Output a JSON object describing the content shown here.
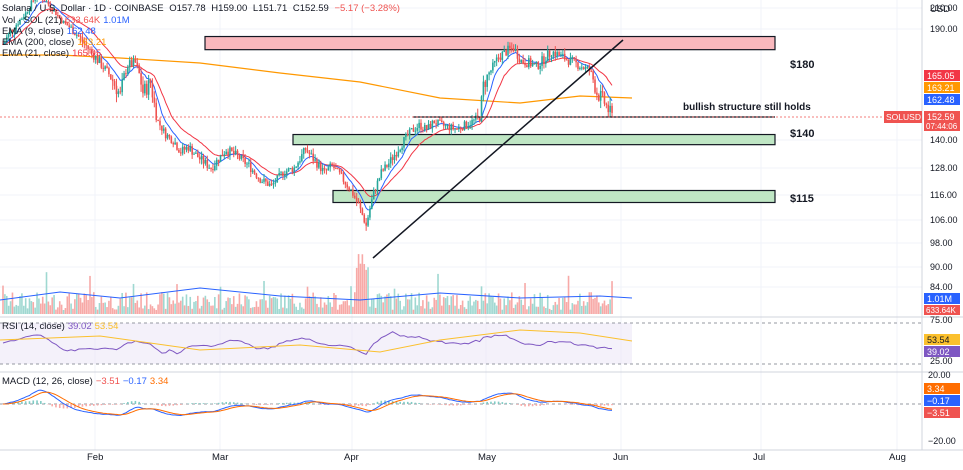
{
  "header": {
    "symbol_line": "Solana / U.S. Dollar · 1D · COINBASE",
    "ohlc": {
      "O": "157.78",
      "H": "159.00",
      "L": "151.71",
      "C": "152.59",
      "change": "−5.17 (−3.28%)"
    }
  },
  "legends": {
    "vol": {
      "label": "Vol · SOL (21)",
      "value": "633.64K",
      "value2": "1.01M"
    },
    "ema9": {
      "label": "EMA (9, close)",
      "value": "162.48"
    },
    "ema200": {
      "label": "EMA (200, close)",
      "value": "163.21"
    },
    "ema21": {
      "label": "EMA (21, close)",
      "value": "165.05"
    },
    "rsi": {
      "label": "RSI (14, close)",
      "value": "39.02",
      "value2": "53.54"
    },
    "macd": {
      "label": "MACD (12, 26, close)",
      "value": "−3.51",
      "value2": "−0.17",
      "value3": "3.34"
    }
  },
  "axis": {
    "currency": "USD"
  },
  "price_badges": {
    "ema21": "165.05",
    "ema200": "163.21",
    "ema9": "162.48",
    "last_symbol": "SOLUSD",
    "last_price": "152.59",
    "countdown": "07:44:06",
    "vol_ma": "1.01M",
    "vol_last": "633.64K",
    "rsi_ma": "53.54",
    "rsi_val": "39.02",
    "macd_signal": "3.34",
    "macd_line": "−0.17",
    "macd_hist": "−3.51"
  },
  "annotations": {
    "z180": "$180",
    "z140": "$140",
    "z115": "$115",
    "bullish": "bullish structure still holds"
  },
  "colors": {
    "up": "#26a69a",
    "down": "#ef5350",
    "ema9": "#2962ff",
    "ema21": "#f23645",
    "ema200": "#ff9800",
    "zone_red": "#f9b8bd",
    "zone_green": "#bfe6c4",
    "rsi_line": "#7e57c2",
    "rsi_ma": "#fbc02d",
    "macd_line": "#2962ff",
    "macd_signal": "#ff6d00"
  },
  "chart_data": {
    "type": "candlestick",
    "price_ticks": [
      "210.00",
      "190.00",
      "180.00",
      "165.05",
      "163.21",
      "162.48",
      "152.59",
      "140.00",
      "128.00",
      "116.00",
      "106.00",
      "98.00",
      "90.00",
      "84.00"
    ],
    "x_labels": [
      "Feb",
      "Mar",
      "Apr",
      "May",
      "Jun",
      "Jul",
      "Aug"
    ],
    "rsi_ticks": [
      "75.00",
      "25.00"
    ],
    "macd_ticks": [
      "20.00",
      "−20.00"
    ],
    "resistance_zone": [
      179,
      186
    ],
    "support_zones": [
      [
        138,
        143
      ],
      [
        113,
        118
      ]
    ],
    "price_path": [
      [
        0,
        182
      ],
      [
        6,
        192
      ],
      [
        12,
        205
      ],
      [
        18,
        224
      ],
      [
        22,
        218
      ],
      [
        26,
        210
      ],
      [
        32,
        196
      ],
      [
        40,
        186
      ],
      [
        48,
        176
      ],
      [
        56,
        166
      ],
      [
        62,
        159
      ],
      [
        66,
        171
      ],
      [
        70,
        172
      ],
      [
        74,
        160
      ],
      [
        78,
        163
      ],
      [
        82,
        150
      ],
      [
        86,
        143
      ],
      [
        90,
        140
      ],
      [
        94,
        135
      ],
      [
        98,
        137
      ],
      [
        104,
        132
      ],
      [
        110,
        128
      ],
      [
        114,
        132
      ],
      [
        118,
        136
      ],
      [
        124,
        133
      ],
      [
        130,
        129
      ],
      [
        136,
        123
      ],
      [
        142,
        120
      ],
      [
        148,
        126
      ],
      [
        154,
        128
      ],
      [
        160,
        136
      ],
      [
        166,
        130
      ],
      [
        170,
        126
      ],
      [
        174,
        129
      ],
      [
        178,
        125
      ],
      [
        184,
        118
      ],
      [
        188,
        112
      ],
      [
        192,
        104
      ],
      [
        196,
        117
      ],
      [
        200,
        126
      ],
      [
        204,
        130
      ],
      [
        208,
        135
      ],
      [
        212,
        140
      ],
      [
        216,
        145
      ],
      [
        220,
        148
      ],
      [
        224,
        146
      ],
      [
        228,
        150
      ],
      [
        232,
        148
      ],
      [
        236,
        147
      ],
      [
        240,
        146
      ],
      [
        244,
        148
      ],
      [
        248,
        150
      ],
      [
        252,
        152
      ],
      [
        254,
        162
      ],
      [
        258,
        168
      ],
      [
        262,
        175
      ],
      [
        266,
        178
      ],
      [
        270,
        180
      ],
      [
        274,
        173
      ],
      [
        278,
        172
      ],
      [
        282,
        170
      ],
      [
        286,
        174
      ],
      [
        290,
        178
      ],
      [
        294,
        176
      ],
      [
        298,
        174
      ],
      [
        302,
        172
      ],
      [
        306,
        170
      ],
      [
        310,
        168
      ],
      [
        314,
        160
      ],
      [
        318,
        157
      ],
      [
        322,
        152.59
      ]
    ]
  }
}
